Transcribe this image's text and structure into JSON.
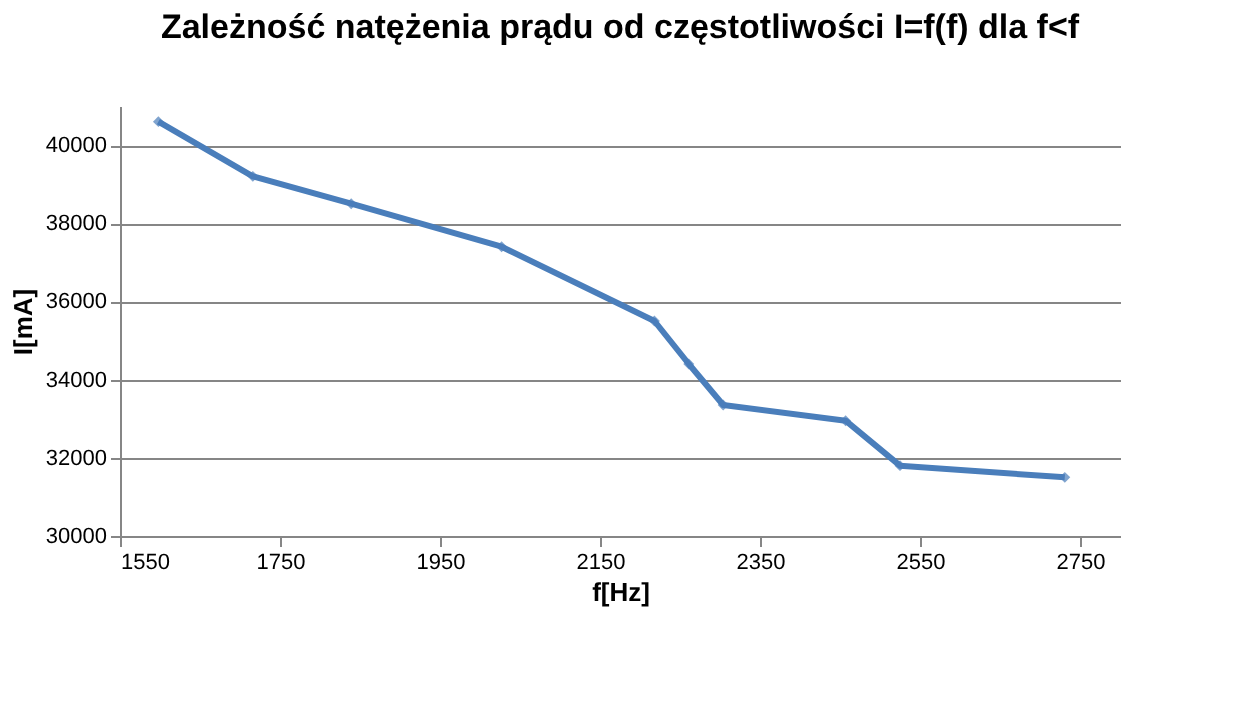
{
  "chart_data": {
    "type": "line",
    "title": "Zależność natężenia prądu od częstotliwości I=f(f) dla f<f",
    "xlabel": "f[Hz]",
    "ylabel": "I[mA]",
    "x": [
      1598,
      1716,
      1839,
      2027,
      2218,
      2261,
      2304,
      2457,
      2525,
      2731
    ],
    "series": [
      {
        "color": "#4a7ebb",
        "values": [
          40600,
          39200,
          38500,
          37400,
          35500,
          34400,
          33350,
          32950,
          31800,
          31500
        ]
      }
    ],
    "xlim": [
      1550,
      2800
    ],
    "xticks": [
      1550,
      1750,
      1950,
      2150,
      2350,
      2550,
      2750
    ],
    "ylim": [
      30000,
      41000
    ],
    "yticks": [
      30000,
      32000,
      34000,
      36000,
      38000,
      40000
    ],
    "grid": "y",
    "marker": "diamond",
    "line_style": "solid"
  }
}
